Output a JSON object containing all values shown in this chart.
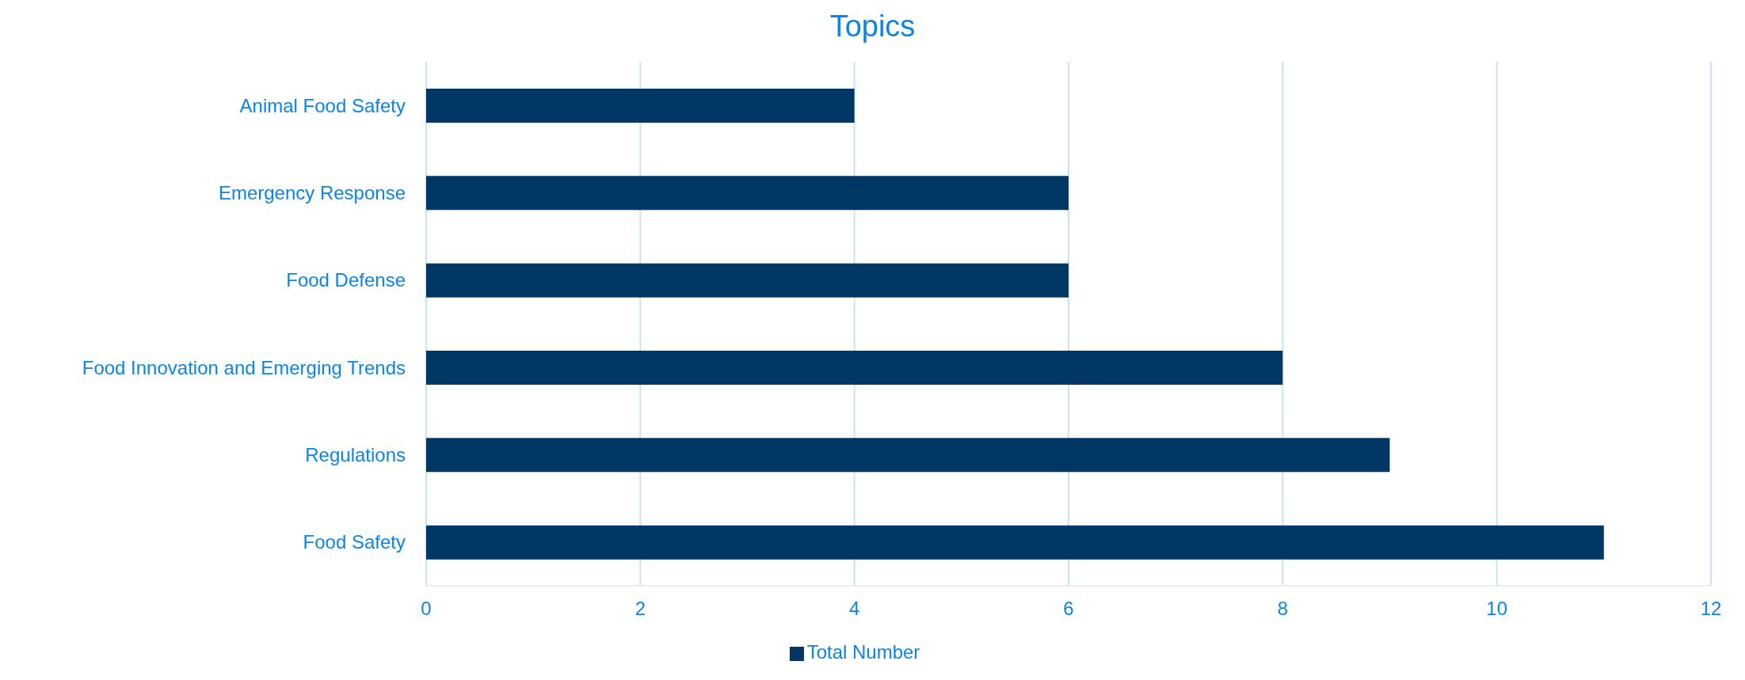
{
  "chart_data": {
    "type": "bar",
    "orientation": "horizontal",
    "title": "Topics",
    "categories": [
      "Animal Food Safety",
      "Emergency Response",
      "Food Defense",
      "Food Innovation and Emerging Trends",
      "Regulations",
      "Food Safety"
    ],
    "series": [
      {
        "name": "Total Number",
        "color": "#003764",
        "values": [
          4,
          6,
          6,
          8,
          9,
          11
        ]
      }
    ],
    "xlim": [
      0,
      12
    ],
    "xticks": [
      0,
      2,
      4,
      6,
      8,
      10,
      12
    ],
    "grid": "x",
    "legend": "bottom"
  }
}
